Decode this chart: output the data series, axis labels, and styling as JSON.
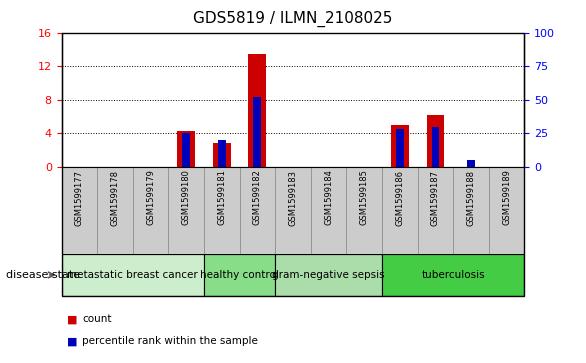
{
  "title": "GDS5819 / ILMN_2108025",
  "samples": [
    "GSM1599177",
    "GSM1599178",
    "GSM1599179",
    "GSM1599180",
    "GSM1599181",
    "GSM1599182",
    "GSM1599183",
    "GSM1599184",
    "GSM1599185",
    "GSM1599186",
    "GSM1599187",
    "GSM1599188",
    "GSM1599189"
  ],
  "count_values": [
    0,
    0,
    0,
    4.3,
    2.8,
    13.5,
    0,
    0,
    0,
    5.0,
    6.2,
    0,
    0
  ],
  "percentile_values": [
    0,
    0,
    0,
    25,
    20,
    52,
    0,
    0,
    0,
    28,
    30,
    5,
    0
  ],
  "ylim_left": [
    0,
    16
  ],
  "ylim_right": [
    0,
    100
  ],
  "yticks_left": [
    0,
    4,
    8,
    12,
    16
  ],
  "yticks_right": [
    0,
    25,
    50,
    75,
    100
  ],
  "bar_color": "#cc0000",
  "percentile_color": "#0000bb",
  "bar_width": 0.5,
  "perc_bar_width": 0.22,
  "group_defs": [
    {
      "label": "metastatic breast cancer",
      "cols": [
        0,
        1,
        2,
        3
      ],
      "color": "#cceecc"
    },
    {
      "label": "healthy control",
      "cols": [
        4,
        5
      ],
      "color": "#88dd88"
    },
    {
      "label": "gram-negative sepsis",
      "cols": [
        6,
        7,
        8
      ],
      "color": "#aaddaa"
    },
    {
      "label": "tuberculosis",
      "cols": [
        9,
        10,
        11,
        12
      ],
      "color": "#44cc44"
    }
  ],
  "tick_bg_color": "#cccccc",
  "tick_border_color": "#888888",
  "legend_count_color": "#cc0000",
  "legend_perc_color": "#0000bb",
  "title_fontsize": 11,
  "tick_fontsize": 6,
  "group_fontsize": 7.5,
  "axis_fontsize": 8
}
